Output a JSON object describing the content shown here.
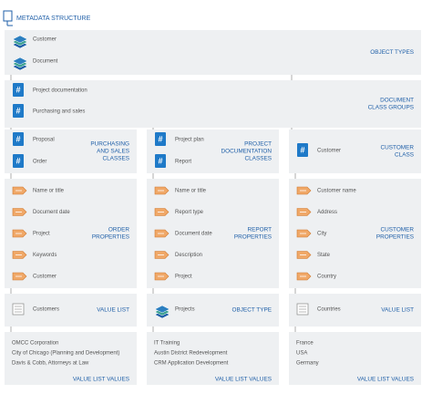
{
  "title": "METADATA STRUCTURE",
  "object_types": {
    "label": [
      "OBJECT TYPES"
    ],
    "items": [
      "Customer",
      "Document"
    ]
  },
  "class_groups": {
    "label": [
      "DOCUMENT",
      "CLASS GROUPS"
    ],
    "items": [
      "Project documentation",
      "Purchasing and sales"
    ]
  },
  "columns": [
    {
      "classes": {
        "label": [
          "PURCHASING",
          "AND SALES",
          "CLASSES"
        ],
        "items": [
          "Proposal",
          "Order"
        ]
      },
      "properties": {
        "label": [
          "ORDER",
          "PROPERTIES"
        ],
        "items": [
          "Name or title",
          "Document date",
          "Project",
          "Keywords",
          "Customer"
        ]
      },
      "list": {
        "label": [
          "VALUE LIST"
        ],
        "items": [
          "Customers"
        ]
      },
      "values": {
        "label": [
          "VALUE LIST VALUES"
        ],
        "items": [
          "OMCC Corporation",
          "City of Chicago (Planning and Development)",
          "Davis & Cobb, Attorneys at Law"
        ]
      }
    },
    {
      "classes": {
        "label": [
          "PROJECT",
          "DOCUMENTATION",
          "CLASSES"
        ],
        "items": [
          "Project plan",
          "Report"
        ]
      },
      "properties": {
        "label": [
          "REPORT",
          "PROPERTIES"
        ],
        "items": [
          "Name or title",
          "Report type",
          "Document date",
          "Description",
          "Project"
        ]
      },
      "list": {
        "label": [
          "OBJECT TYPE"
        ],
        "items": [
          "Projects"
        ]
      },
      "values": {
        "label": [
          "VALUE LIST VALUES"
        ],
        "items": [
          "IT Training",
          "Austin District Redevelopment",
          "CRM Application Development"
        ]
      }
    },
    {
      "classes": {
        "label": [
          "CUSTOMER",
          "CLASS"
        ],
        "items": [
          "Customer"
        ]
      },
      "properties": {
        "label": [
          "CUSTOMER",
          "PROPERTIES"
        ],
        "items": [
          "Customer name",
          "Address",
          "City",
          "State",
          "Country"
        ]
      },
      "list": {
        "label": [
          "VALUE LIST"
        ],
        "items": [
          "Countries"
        ]
      },
      "values": {
        "label": [
          "VALUE LIST VALUES"
        ],
        "items": [
          "France",
          "USA",
          "Germany"
        ]
      }
    }
  ]
}
